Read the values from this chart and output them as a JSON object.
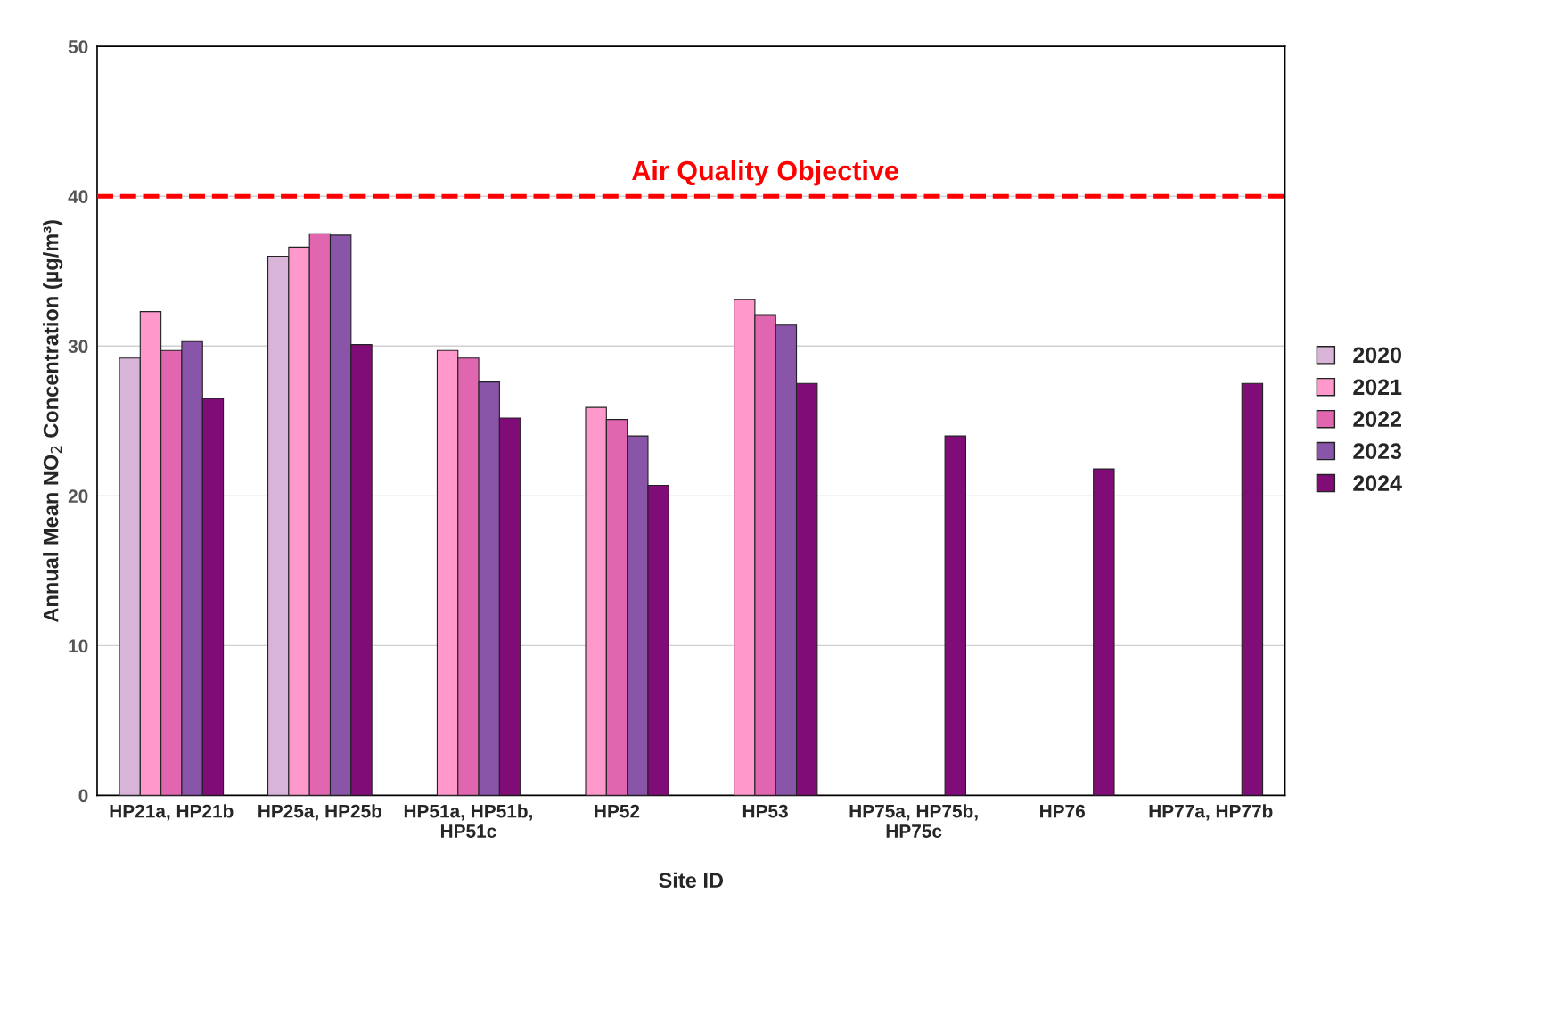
{
  "chart_data": {
    "type": "bar",
    "xlabel": "Site ID",
    "ylabel": "Annual Mean NO$_{2}$ Concentration (µg/m³)",
    "categories": [
      "HP21a, HP21b",
      "HP25a, HP25b",
      "HP51a, HP51b,\nHP51c",
      "HP52",
      "HP53",
      "HP75a, HP75b,\nHP75c",
      "HP76",
      "HP77a, HP77b"
    ],
    "series": [
      {
        "name": "2020",
        "color": "#d8b4d8",
        "values": [
          29.2,
          36.0,
          null,
          null,
          null,
          null,
          null,
          null
        ]
      },
      {
        "name": "2021",
        "color": "#ff99cc",
        "values": [
          32.3,
          36.6,
          29.7,
          25.9,
          33.1,
          null,
          null,
          null
        ]
      },
      {
        "name": "2022",
        "color": "#e066b0",
        "values": [
          29.7,
          37.5,
          29.2,
          25.1,
          32.1,
          null,
          null,
          null
        ]
      },
      {
        "name": "2023",
        "color": "#8855a8",
        "values": [
          30.3,
          37.4,
          27.6,
          24.0,
          31.4,
          null,
          null,
          null
        ]
      },
      {
        "name": "2024",
        "color": "#800c78",
        "values": [
          26.5,
          30.1,
          25.2,
          20.7,
          27.5,
          24.0,
          21.8,
          27.5
        ]
      }
    ],
    "ylim": [
      0,
      50
    ],
    "yticks": [
      0,
      10,
      20,
      30,
      40,
      50
    ],
    "grid": "y",
    "legend": "right",
    "ref_lines": [
      {
        "axis": "y",
        "value": 40,
        "label": "Air Quality Objective",
        "color": "#ff0000",
        "line_style": "dashed"
      }
    ]
  }
}
